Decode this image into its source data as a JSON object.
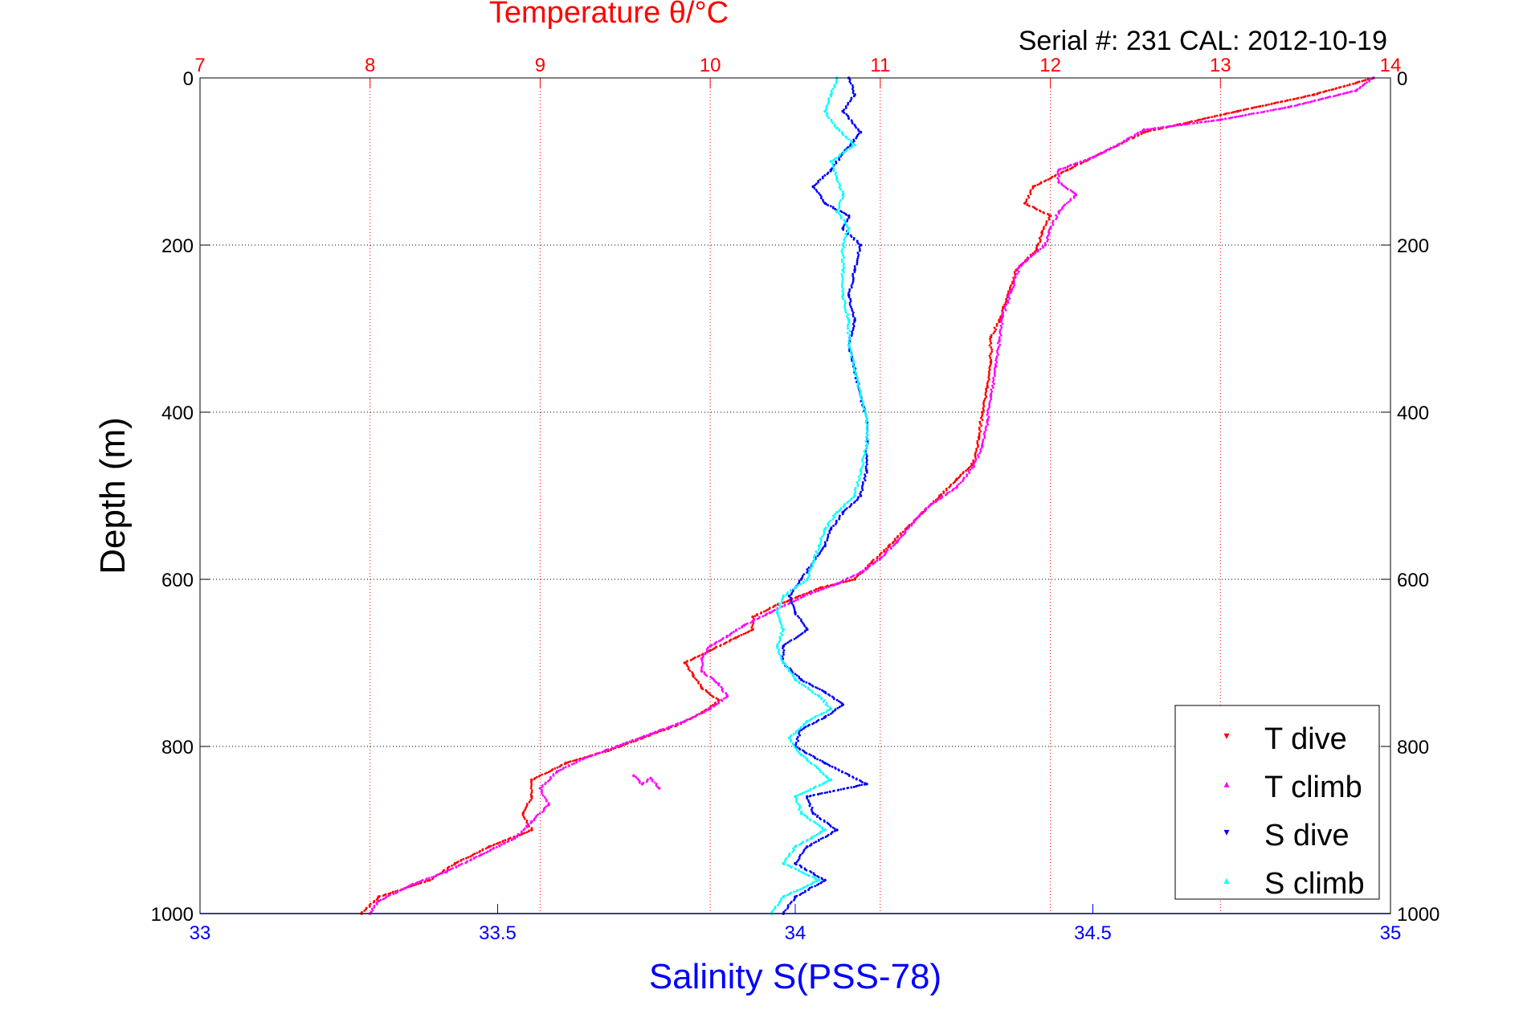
{
  "chart_data": {
    "type": "scatter",
    "title": "Temperature θ/°C",
    "subtitle": "Serial #: 231  CAL: 2012-10-19",
    "ylabel": "Depth (m)",
    "xlabel_bottom": "Salinity S(PSS-78)",
    "ylim": [
      0,
      1000
    ],
    "y_reversed": true,
    "y_ticks": [
      0,
      200,
      400,
      600,
      800,
      1000
    ],
    "temperature_axis": {
      "position": "top",
      "xlim": [
        7,
        14
      ],
      "ticks": [
        7,
        8,
        9,
        10,
        11,
        12,
        13,
        14
      ],
      "color": "#ff0000"
    },
    "salinity_axis": {
      "position": "bottom",
      "xlim": [
        33,
        35
      ],
      "ticks": [
        33,
        33.5,
        34,
        34.5,
        35
      ],
      "tick_labels": [
        "33",
        "33.5",
        "34",
        "34.5",
        "35"
      ],
      "color": "#0000ff"
    },
    "grid": true,
    "legend_position": "bottom-right",
    "series": [
      {
        "name": "T dive",
        "axis": "temperature",
        "color": "#ff0000",
        "marker": "▾",
        "points": [
          [
            13.9,
            0
          ],
          [
            13.55,
            20
          ],
          [
            13.1,
            40
          ],
          [
            12.55,
            65
          ],
          [
            12.3,
            90
          ],
          [
            12.1,
            110
          ],
          [
            11.9,
            130
          ],
          [
            11.85,
            150
          ],
          [
            12.0,
            165
          ],
          [
            11.95,
            185
          ],
          [
            11.92,
            205
          ],
          [
            11.8,
            230
          ],
          [
            11.75,
            260
          ],
          [
            11.7,
            290
          ],
          [
            11.65,
            310
          ],
          [
            11.65,
            340
          ],
          [
            11.63,
            370
          ],
          [
            11.6,
            400
          ],
          [
            11.58,
            430
          ],
          [
            11.55,
            460
          ],
          [
            11.45,
            480
          ],
          [
            11.35,
            500
          ],
          [
            11.25,
            520
          ],
          [
            11.15,
            540
          ],
          [
            11.05,
            560
          ],
          [
            10.95,
            580
          ],
          [
            10.85,
            600
          ],
          [
            10.65,
            610
          ],
          [
            10.4,
            630
          ],
          [
            10.25,
            645
          ],
          [
            10.25,
            660
          ],
          [
            10.15,
            670
          ],
          [
            10.0,
            685
          ],
          [
            9.85,
            700
          ],
          [
            9.9,
            715
          ],
          [
            9.95,
            730
          ],
          [
            10.05,
            745
          ],
          [
            9.95,
            760
          ],
          [
            9.8,
            775
          ],
          [
            9.6,
            790
          ],
          [
            9.4,
            805
          ],
          [
            9.15,
            820
          ],
          [
            8.95,
            840
          ],
          [
            8.95,
            860
          ],
          [
            8.9,
            880
          ],
          [
            8.95,
            900
          ],
          [
            8.7,
            920
          ],
          [
            8.5,
            940
          ],
          [
            8.35,
            960
          ],
          [
            8.05,
            980
          ],
          [
            7.95,
            1000
          ]
        ]
      },
      {
        "name": "T climb",
        "axis": "temperature",
        "color": "#ff00ff",
        "marker": "▴",
        "points": [
          [
            13.9,
            0
          ],
          [
            13.8,
            15
          ],
          [
            13.4,
            35
          ],
          [
            13.0,
            50
          ],
          [
            12.55,
            62
          ],
          [
            12.4,
            80
          ],
          [
            12.25,
            95
          ],
          [
            12.05,
            110
          ],
          [
            12.05,
            125
          ],
          [
            12.15,
            140
          ],
          [
            12.05,
            160
          ],
          [
            12.0,
            180
          ],
          [
            11.97,
            200
          ],
          [
            11.82,
            225
          ],
          [
            11.77,
            255
          ],
          [
            11.72,
            285
          ],
          [
            11.7,
            315
          ],
          [
            11.68,
            345
          ],
          [
            11.65,
            380
          ],
          [
            11.63,
            410
          ],
          [
            11.6,
            440
          ],
          [
            11.55,
            465
          ],
          [
            11.45,
            490
          ],
          [
            11.3,
            510
          ],
          [
            11.2,
            530
          ],
          [
            11.1,
            555
          ],
          [
            11.0,
            575
          ],
          [
            10.9,
            590
          ],
          [
            10.75,
            605
          ],
          [
            10.55,
            620
          ],
          [
            10.35,
            640
          ],
          [
            10.2,
            655
          ],
          [
            10.1,
            668
          ],
          [
            10.0,
            680
          ],
          [
            9.95,
            695
          ],
          [
            9.95,
            710
          ],
          [
            10.05,
            725
          ],
          [
            10.1,
            740
          ],
          [
            10.0,
            755
          ],
          [
            9.85,
            770
          ],
          [
            9.65,
            785
          ],
          [
            9.45,
            800
          ],
          [
            9.25,
            815
          ],
          [
            9.1,
            830
          ],
          [
            9.0,
            850
          ],
          [
            9.05,
            870
          ],
          [
            8.95,
            890
          ],
          [
            8.85,
            910
          ],
          [
            8.65,
            930
          ],
          [
            8.45,
            950
          ],
          [
            8.25,
            965
          ],
          [
            8.05,
            985
          ],
          [
            8.0,
            1000
          ]
        ]
      },
      {
        "name": "T climb",
        "axis": "temperature",
        "color": "#ff00ff",
        "marker": "▴",
        "points": [
          [
            9.55,
            835
          ],
          [
            9.6,
            845
          ],
          [
            9.65,
            838
          ],
          [
            9.7,
            850
          ]
        ]
      },
      {
        "name": "S dive",
        "axis": "salinity",
        "color": "#0000ff",
        "marker": "▾",
        "points": [
          [
            34.09,
            0
          ],
          [
            34.1,
            20
          ],
          [
            34.08,
            40
          ],
          [
            34.11,
            65
          ],
          [
            34.08,
            90
          ],
          [
            34.06,
            110
          ],
          [
            34.03,
            130
          ],
          [
            34.05,
            150
          ],
          [
            34.09,
            165
          ],
          [
            34.08,
            180
          ],
          [
            34.11,
            200
          ],
          [
            34.1,
            230
          ],
          [
            34.09,
            260
          ],
          [
            34.1,
            290
          ],
          [
            34.09,
            320
          ],
          [
            34.1,
            350
          ],
          [
            34.11,
            380
          ],
          [
            34.12,
            410
          ],
          [
            34.12,
            440
          ],
          [
            34.12,
            470
          ],
          [
            34.11,
            500
          ],
          [
            34.08,
            520
          ],
          [
            34.06,
            540
          ],
          [
            34.05,
            560
          ],
          [
            34.03,
            580
          ],
          [
            34.01,
            600
          ],
          [
            33.99,
            620
          ],
          [
            34.0,
            640
          ],
          [
            34.02,
            660
          ],
          [
            33.98,
            680
          ],
          [
            33.98,
            700
          ],
          [
            34.01,
            720
          ],
          [
            34.05,
            735
          ],
          [
            34.08,
            750
          ],
          [
            34.05,
            765
          ],
          [
            34.01,
            780
          ],
          [
            34.0,
            800
          ],
          [
            34.05,
            820
          ],
          [
            34.12,
            845
          ],
          [
            34.02,
            860
          ],
          [
            34.03,
            880
          ],
          [
            34.07,
            900
          ],
          [
            34.02,
            920
          ],
          [
            34.0,
            940
          ],
          [
            34.05,
            960
          ],
          [
            34.0,
            980
          ],
          [
            33.98,
            1000
          ]
        ]
      },
      {
        "name": "S climb",
        "axis": "salinity",
        "color": "#00ffff",
        "marker": "▴",
        "points": [
          [
            34.07,
            0
          ],
          [
            34.06,
            20
          ],
          [
            34.05,
            40
          ],
          [
            34.07,
            60
          ],
          [
            34.1,
            80
          ],
          [
            34.06,
            100
          ],
          [
            34.07,
            120
          ],
          [
            34.08,
            140
          ],
          [
            34.07,
            160
          ],
          [
            34.09,
            180
          ],
          [
            34.08,
            200
          ],
          [
            34.08,
            230
          ],
          [
            34.08,
            260
          ],
          [
            34.09,
            290
          ],
          [
            34.09,
            320
          ],
          [
            34.1,
            350
          ],
          [
            34.11,
            380
          ],
          [
            34.12,
            410
          ],
          [
            34.12,
            440
          ],
          [
            34.11,
            470
          ],
          [
            34.1,
            500
          ],
          [
            34.07,
            520
          ],
          [
            34.05,
            540
          ],
          [
            34.04,
            560
          ],
          [
            34.03,
            580
          ],
          [
            34.02,
            600
          ],
          [
            33.98,
            620
          ],
          [
            33.97,
            640
          ],
          [
            33.98,
            660
          ],
          [
            33.97,
            680
          ],
          [
            33.98,
            700
          ],
          [
            34.0,
            720
          ],
          [
            34.04,
            740
          ],
          [
            34.06,
            755
          ],
          [
            34.02,
            770
          ],
          [
            33.99,
            790
          ],
          [
            34.01,
            810
          ],
          [
            34.06,
            840
          ],
          [
            34.0,
            860
          ],
          [
            34.01,
            880
          ],
          [
            34.05,
            900
          ],
          [
            34.0,
            920
          ],
          [
            33.98,
            940
          ],
          [
            34.04,
            960
          ],
          [
            33.98,
            980
          ],
          [
            33.96,
            1000
          ]
        ]
      }
    ]
  }
}
